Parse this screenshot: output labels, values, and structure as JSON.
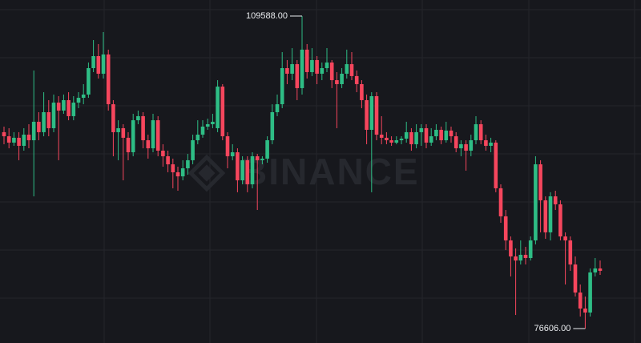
{
  "chart_data": {
    "type": "candlestick",
    "watermark": "BINANCE",
    "up_color": "#2ebd85",
    "down_color": "#f6465d",
    "ohlc": [
      [
        97330,
        97920,
        96060,
        96900
      ],
      [
        96900,
        97750,
        95630,
        96230
      ],
      [
        96230,
        97330,
        95890,
        96740
      ],
      [
        96740,
        97330,
        94370,
        95890
      ],
      [
        95890,
        97750,
        95380,
        97070
      ],
      [
        97070,
        98170,
        95630,
        96480
      ],
      [
        96480,
        103840,
        90560,
        98430
      ],
      [
        98430,
        99440,
        96480,
        97330
      ],
      [
        97330,
        101550,
        96900,
        99440
      ],
      [
        99440,
        100710,
        96900,
        97750
      ],
      [
        97750,
        101300,
        97330,
        100450
      ],
      [
        100450,
        101130,
        94370,
        99610
      ],
      [
        99610,
        101300,
        99270,
        100710
      ],
      [
        100710,
        101550,
        98590,
        99020
      ],
      [
        99020,
        101130,
        98590,
        100450
      ],
      [
        100450,
        101550,
        99860,
        100960
      ],
      [
        100960,
        102400,
        100280,
        101300
      ],
      [
        101300,
        104680,
        100960,
        104090
      ],
      [
        104090,
        107050,
        103670,
        105360
      ],
      [
        105360,
        106630,
        102990,
        103500
      ],
      [
        103500,
        107900,
        102990,
        105530
      ],
      [
        105530,
        106040,
        99610,
        100280
      ],
      [
        100280,
        100710,
        94790,
        97330
      ],
      [
        97330,
        98590,
        94370,
        97750
      ],
      [
        97750,
        98170,
        92250,
        96740
      ],
      [
        96740,
        97330,
        94370,
        95210
      ],
      [
        95210,
        99270,
        94790,
        98590
      ],
      [
        98590,
        99610,
        98170,
        99020
      ],
      [
        99020,
        99440,
        95630,
        96480
      ],
      [
        96480,
        97070,
        94540,
        95630
      ],
      [
        95630,
        99270,
        95210,
        98590
      ],
      [
        98590,
        99020,
        94790,
        95380
      ],
      [
        95380,
        96060,
        93690,
        94790
      ],
      [
        94790,
        95380,
        93100,
        93940
      ],
      [
        93940,
        94540,
        91410,
        93100
      ],
      [
        93100,
        93690,
        91150,
        92670
      ],
      [
        92670,
        94370,
        92250,
        93520
      ],
      [
        93520,
        95040,
        92840,
        94370
      ],
      [
        94370,
        97070,
        93940,
        96480
      ],
      [
        96480,
        98590,
        96060,
        97070
      ],
      [
        97070,
        98590,
        96740,
        97920
      ],
      [
        97920,
        98760,
        97580,
        98170
      ],
      [
        98170,
        99270,
        97750,
        98430
      ],
      [
        97750,
        102820,
        97330,
        102140
      ],
      [
        102140,
        102400,
        96480,
        96900
      ],
      [
        96900,
        97330,
        93520,
        94790
      ],
      [
        94790,
        96060,
        94370,
        95210
      ],
      [
        95210,
        95630,
        90990,
        92250
      ],
      [
        92250,
        94790,
        91830,
        94370
      ],
      [
        94370,
        94790,
        90990,
        91830
      ],
      [
        91830,
        95210,
        91410,
        94790
      ],
      [
        94790,
        95040,
        89120,
        94370
      ],
      [
        94370,
        94790,
        93940,
        94540
      ],
      [
        94540,
        96900,
        94110,
        96480
      ],
      [
        96480,
        100280,
        96060,
        99440
      ],
      [
        99440,
        101300,
        99020,
        100280
      ],
      [
        100280,
        105780,
        99860,
        104090
      ],
      [
        104090,
        104940,
        102400,
        103500
      ],
      [
        103500,
        106200,
        102820,
        104510
      ],
      [
        104510,
        104940,
        100710,
        101980
      ],
      [
        101980,
        109588,
        101300,
        106040
      ],
      [
        106040,
        106630,
        102990,
        103670
      ],
      [
        103670,
        106200,
        103250,
        104940
      ],
      [
        104940,
        105360,
        102400,
        103500
      ],
      [
        103500,
        104680,
        102820,
        104090
      ],
      [
        104090,
        106200,
        103670,
        104680
      ],
      [
        104680,
        104940,
        101980,
        102820
      ],
      [
        102820,
        103670,
        97750,
        102400
      ],
      [
        102400,
        104090,
        101980,
        103500
      ],
      [
        103500,
        106040,
        102990,
        104510
      ],
      [
        104510,
        105780,
        102820,
        103250
      ],
      [
        103250,
        103840,
        101550,
        102400
      ],
      [
        102400,
        102820,
        99860,
        100710
      ],
      [
        100710,
        101300,
        96060,
        97580
      ],
      [
        97580,
        101550,
        90990,
        101130
      ],
      [
        101130,
        101550,
        96480,
        97070
      ],
      [
        97070,
        99020,
        96060,
        96740
      ],
      [
        96740,
        97330,
        96060,
        96480
      ],
      [
        96480,
        96900,
        95890,
        96230
      ],
      [
        96230,
        96900,
        96060,
        96480
      ],
      [
        96480,
        96900,
        96060,
        96650
      ],
      [
        96650,
        98430,
        96230,
        97330
      ],
      [
        97330,
        97750,
        95380,
        96060
      ],
      [
        96060,
        98170,
        95630,
        97330
      ],
      [
        97330,
        98170,
        95890,
        97750
      ],
      [
        97750,
        98170,
        95630,
        96230
      ],
      [
        96230,
        97750,
        95890,
        96900
      ],
      [
        96900,
        98170,
        96480,
        97580
      ],
      [
        97580,
        97920,
        96060,
        96480
      ],
      [
        96480,
        98430,
        96230,
        97500
      ],
      [
        97500,
        97920,
        96230,
        96900
      ],
      [
        96900,
        97330,
        95210,
        95630
      ],
      [
        95630,
        96480,
        94790,
        96060
      ],
      [
        96060,
        96480,
        93270,
        95380
      ],
      [
        95380,
        97070,
        94790,
        96480
      ],
      [
        96480,
        99020,
        96060,
        98170
      ],
      [
        98170,
        98590,
        96060,
        96480
      ],
      [
        96480,
        97070,
        95380,
        95890
      ],
      [
        95890,
        96740,
        95210,
        96230
      ],
      [
        96230,
        96480,
        90990,
        91410
      ],
      [
        91410,
        91830,
        87770,
        88450
      ],
      [
        88450,
        89120,
        84890,
        85910
      ],
      [
        85910,
        86330,
        82110,
        84220
      ],
      [
        84220,
        85070,
        78040,
        83790
      ],
      [
        83790,
        85910,
        83370,
        84390
      ],
      [
        84390,
        85230,
        83370,
        84050
      ],
      [
        84050,
        86330,
        83790,
        85910
      ],
      [
        85910,
        94790,
        85490,
        93940
      ],
      [
        93940,
        94370,
        86760,
        90140
      ],
      [
        90140,
        90560,
        86080,
        86760
      ],
      [
        86760,
        90990,
        85910,
        90560
      ],
      [
        90560,
        91150,
        89120,
        89720
      ],
      [
        89720,
        90140,
        85910,
        86330
      ],
      [
        86330,
        86760,
        81260,
        85910
      ],
      [
        85910,
        86330,
        82700,
        83370
      ],
      [
        83370,
        84220,
        79990,
        80410
      ],
      [
        80410,
        81260,
        77880,
        78720
      ],
      [
        78720,
        79990,
        76606,
        78300
      ],
      [
        78300,
        82950,
        77880,
        82530
      ],
      [
        82530,
        84050,
        82110,
        82950
      ],
      [
        82950,
        83790,
        82270,
        82700
      ]
    ],
    "annotations": [
      {
        "value": 109588,
        "label": "109588.00",
        "at": "high"
      },
      {
        "value": 76606,
        "label": "76606.00",
        "at": "low"
      }
    ]
  }
}
